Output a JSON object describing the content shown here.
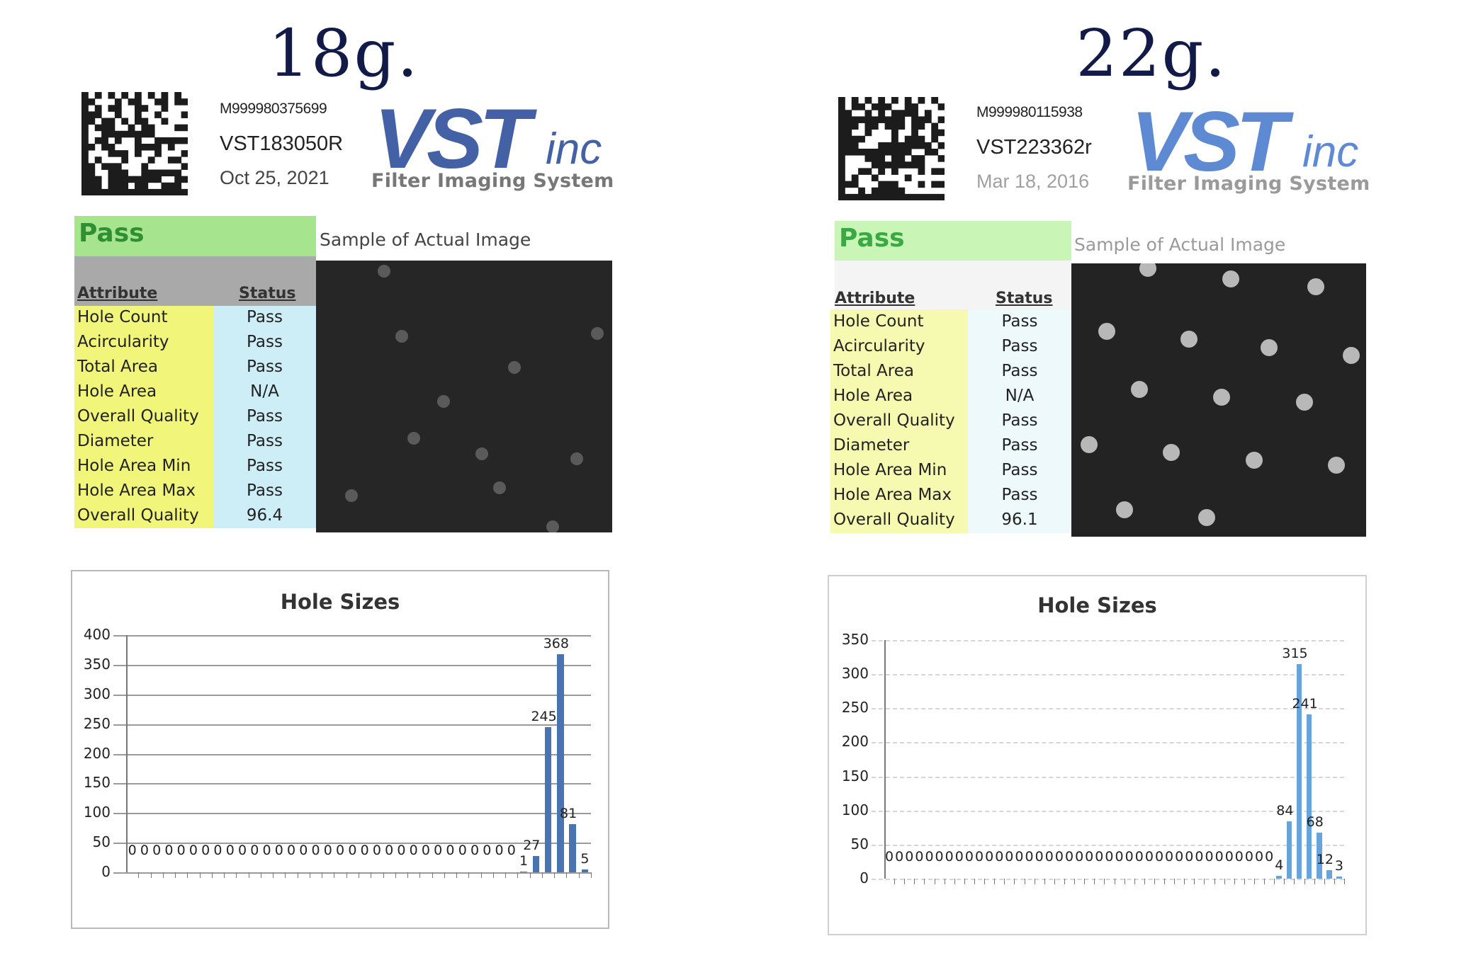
{
  "panels": [
    {
      "id": "left",
      "heading": "18g.",
      "barcode_id": "M999980375699",
      "serial": "VST183050R",
      "date": "Oct 25, 2021",
      "date_color": "#444444",
      "logo": {
        "main": "VST",
        "suffix": "inc",
        "tagline": "Filter Imaging System",
        "color": "#4461a6"
      },
      "result": "Pass",
      "sample_label": "Sample of Actual Image",
      "sample_label_color": "#444444",
      "table": {
        "headers": {
          "attribute": "Attribute",
          "status": "Status"
        },
        "rows": [
          {
            "attribute": "Hole Count",
            "status": "Pass"
          },
          {
            "attribute": "Acircularity",
            "status": "Pass"
          },
          {
            "attribute": "Total Area",
            "status": "Pass"
          },
          {
            "attribute": "Hole Area",
            "status": "N/A"
          },
          {
            "attribute": "Overall Quality",
            "status": "Pass"
          },
          {
            "attribute": "Diameter",
            "status": "Pass"
          },
          {
            "attribute": "Hole Area Min",
            "status": "Pass"
          },
          {
            "attribute": "Hole Area Max",
            "status": "Pass"
          },
          {
            "attribute": "Overall Quality",
            "status": "96.4"
          }
        ]
      },
      "colors": {
        "pass_bg": "#a6e58d",
        "header_bg": "#a9a9a9",
        "attr_bg": "#f1f57a",
        "status_bg": "#cdeef6",
        "image_bg": "#262626",
        "dot": "#5a5a5a",
        "bar": "#4a74b0"
      }
    },
    {
      "id": "right",
      "heading": "22g.",
      "barcode_id": "M999980115938",
      "serial": "VST223362r",
      "date": "Mar 18, 2016",
      "date_color": "#a0a0a0",
      "logo": {
        "main": "VST",
        "suffix": "inc",
        "tagline": "Filter Imaging System",
        "color": "#5d8ad2"
      },
      "result": "Pass",
      "sample_label": "Sample of Actual Image",
      "sample_label_color": "#9a9a9a",
      "table": {
        "headers": {
          "attribute": "Attribute",
          "status": "Status"
        },
        "rows": [
          {
            "attribute": "Hole Count",
            "status": "Pass"
          },
          {
            "attribute": "Acircularity",
            "status": "Pass"
          },
          {
            "attribute": "Total Area",
            "status": "Pass"
          },
          {
            "attribute": "Hole Area",
            "status": "N/A"
          },
          {
            "attribute": "Overall Quality",
            "status": "Pass"
          },
          {
            "attribute": "Diameter",
            "status": "Pass"
          },
          {
            "attribute": "Hole Area Min",
            "status": "Pass"
          },
          {
            "attribute": "Hole Area Max",
            "status": "Pass"
          },
          {
            "attribute": "Overall Quality",
            "status": "96.1"
          }
        ]
      },
      "colors": {
        "pass_bg": "#c9f5b6",
        "header_bg": "#f4f4f4",
        "attr_bg": "#f6fab0",
        "status_bg": "#eef9fc",
        "image_bg": "#232323",
        "dot": "#b8b8b8",
        "bar": "#6aa3da"
      }
    }
  ],
  "chart_data": [
    {
      "type": "bar",
      "title": "Hole Sizes",
      "panel": "18g.",
      "xlabel": "",
      "ylabel": "",
      "ylim": [
        0,
        400
      ],
      "yticks": [
        0,
        50,
        100,
        150,
        200,
        250,
        300,
        350,
        400
      ],
      "grid": true,
      "legend": "none",
      "values": [
        0,
        0,
        0,
        0,
        0,
        0,
        0,
        0,
        0,
        0,
        0,
        0,
        0,
        0,
        0,
        0,
        0,
        0,
        0,
        0,
        0,
        0,
        0,
        0,
        0,
        0,
        0,
        0,
        0,
        0,
        0,
        0,
        1,
        27,
        245,
        368,
        81,
        5
      ],
      "data_labels": true
    },
    {
      "type": "bar",
      "title": "Hole Sizes",
      "panel": "22g.",
      "xlabel": "",
      "ylabel": "",
      "ylim": [
        0,
        350
      ],
      "yticks": [
        0,
        50,
        100,
        150,
        200,
        250,
        300,
        350
      ],
      "grid": true,
      "legend": "none",
      "values": [
        0,
        0,
        0,
        0,
        0,
        0,
        0,
        0,
        0,
        0,
        0,
        0,
        0,
        0,
        0,
        0,
        0,
        0,
        0,
        0,
        0,
        0,
        0,
        0,
        0,
        0,
        0,
        0,
        0,
        0,
        0,
        0,
        0,
        0,
        0,
        0,
        0,
        0,
        0,
        4,
        84,
        315,
        241,
        68,
        12,
        3
      ],
      "data_labels": true
    }
  ]
}
